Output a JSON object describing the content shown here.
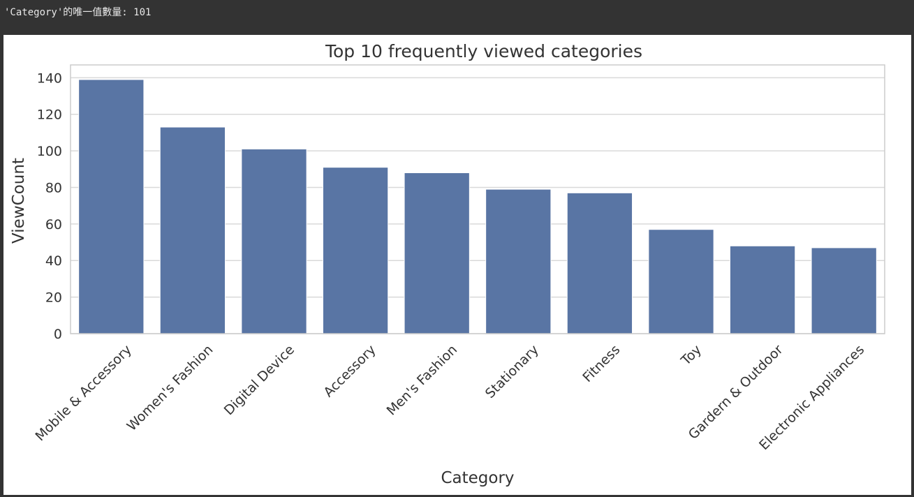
{
  "output": {
    "text": "'Category'的唯一值數量: 101"
  },
  "chart_data": {
    "type": "bar",
    "title": "Top 10 frequently viewed categories",
    "xlabel": "Category",
    "ylabel": "ViewCount",
    "categories": [
      "Mobile & Accessory",
      "Women's Fashion",
      "Digital Device",
      "Accessory",
      "Men's Fashion",
      "Stationary",
      "Fitness",
      "Toy",
      "Gardern & Outdoor",
      "Electronic Appliances"
    ],
    "values": [
      139,
      113,
      101,
      91,
      88,
      79,
      77,
      57,
      48,
      47
    ],
    "ylim": [
      0,
      147
    ],
    "yticks": [
      0,
      20,
      40,
      60,
      80,
      100,
      120,
      140
    ],
    "grid": true,
    "bar_color": "#5975a4",
    "grid_color": "#d9d9d9",
    "frame_color": "#cccccc"
  }
}
